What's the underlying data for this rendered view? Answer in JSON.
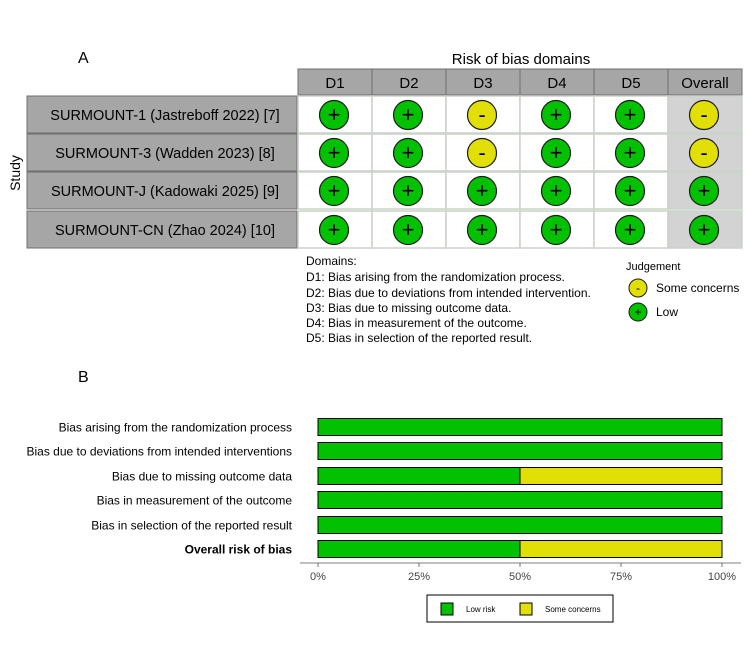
{
  "colors": {
    "low": "#02c100",
    "some": "#e2df07",
    "header_fill": "#a6a6a6",
    "study_fill": "#a6a6a6",
    "overall_fill": "#d3d3d3",
    "cell_border": "#c9d3c9"
  },
  "panel_a": {
    "label": "A",
    "title": "Risk of bias domains",
    "y_axis_label": "Study",
    "columns": [
      "D1",
      "D2",
      "D3",
      "D4",
      "D5",
      "Overall"
    ],
    "studies": [
      {
        "name": "SURMOUNT-1 (Jastreboff 2022) [7]",
        "judgements": [
          "low",
          "low",
          "some",
          "low",
          "low",
          "some"
        ]
      },
      {
        "name": "SURMOUNT-3 (Wadden 2023) [8]",
        "judgements": [
          "low",
          "low",
          "some",
          "low",
          "low",
          "some"
        ]
      },
      {
        "name": "SURMOUNT-J (Kadowaki 2025) [9]",
        "judgements": [
          "low",
          "low",
          "low",
          "low",
          "low",
          "low"
        ]
      },
      {
        "name": "SURMOUNT-CN (Zhao 2024) [10]",
        "judgements": [
          "low",
          "low",
          "low",
          "low",
          "low",
          "low"
        ]
      }
    ],
    "symbols": {
      "low": "+",
      "some": "-"
    },
    "domains_heading": "Domains:",
    "domains": [
      "D1: Bias arising from the randomization process.",
      "D2: Bias due to deviations from intended intervention.",
      "D3: Bias due to missing outcome data.",
      "D4: Bias in measurement of the outcome.",
      "D5: Bias in selection of the reported result."
    ],
    "judgement_title": "Judgement",
    "judgement_legend": [
      {
        "key": "some",
        "symbol": "-",
        "label": "Some concerns"
      },
      {
        "key": "low",
        "symbol": "+",
        "label": "Low"
      }
    ]
  },
  "chart_data": {
    "type": "bar",
    "orientation": "horizontal",
    "stacked": true,
    "panel_label": "B",
    "categories": [
      "Bias arising from the randomization process",
      "Bias due to deviations from intended interventions",
      "Bias due to missing outcome data",
      "Bias in measurement of the outcome",
      "Bias in selection of the reported result",
      "Overall risk of bias"
    ],
    "bold_category": "Overall risk of bias",
    "series": [
      {
        "name": "Low risk",
        "color_key": "low",
        "values": [
          100,
          100,
          50,
          100,
          100,
          50
        ]
      },
      {
        "name": "Some concerns",
        "color_key": "some",
        "values": [
          0,
          0,
          50,
          0,
          0,
          50
        ]
      }
    ],
    "xlim": [
      0,
      100
    ],
    "xticks": [
      "0%",
      "25%",
      "50%",
      "75%",
      "100%"
    ],
    "legend_position": "bottom"
  }
}
